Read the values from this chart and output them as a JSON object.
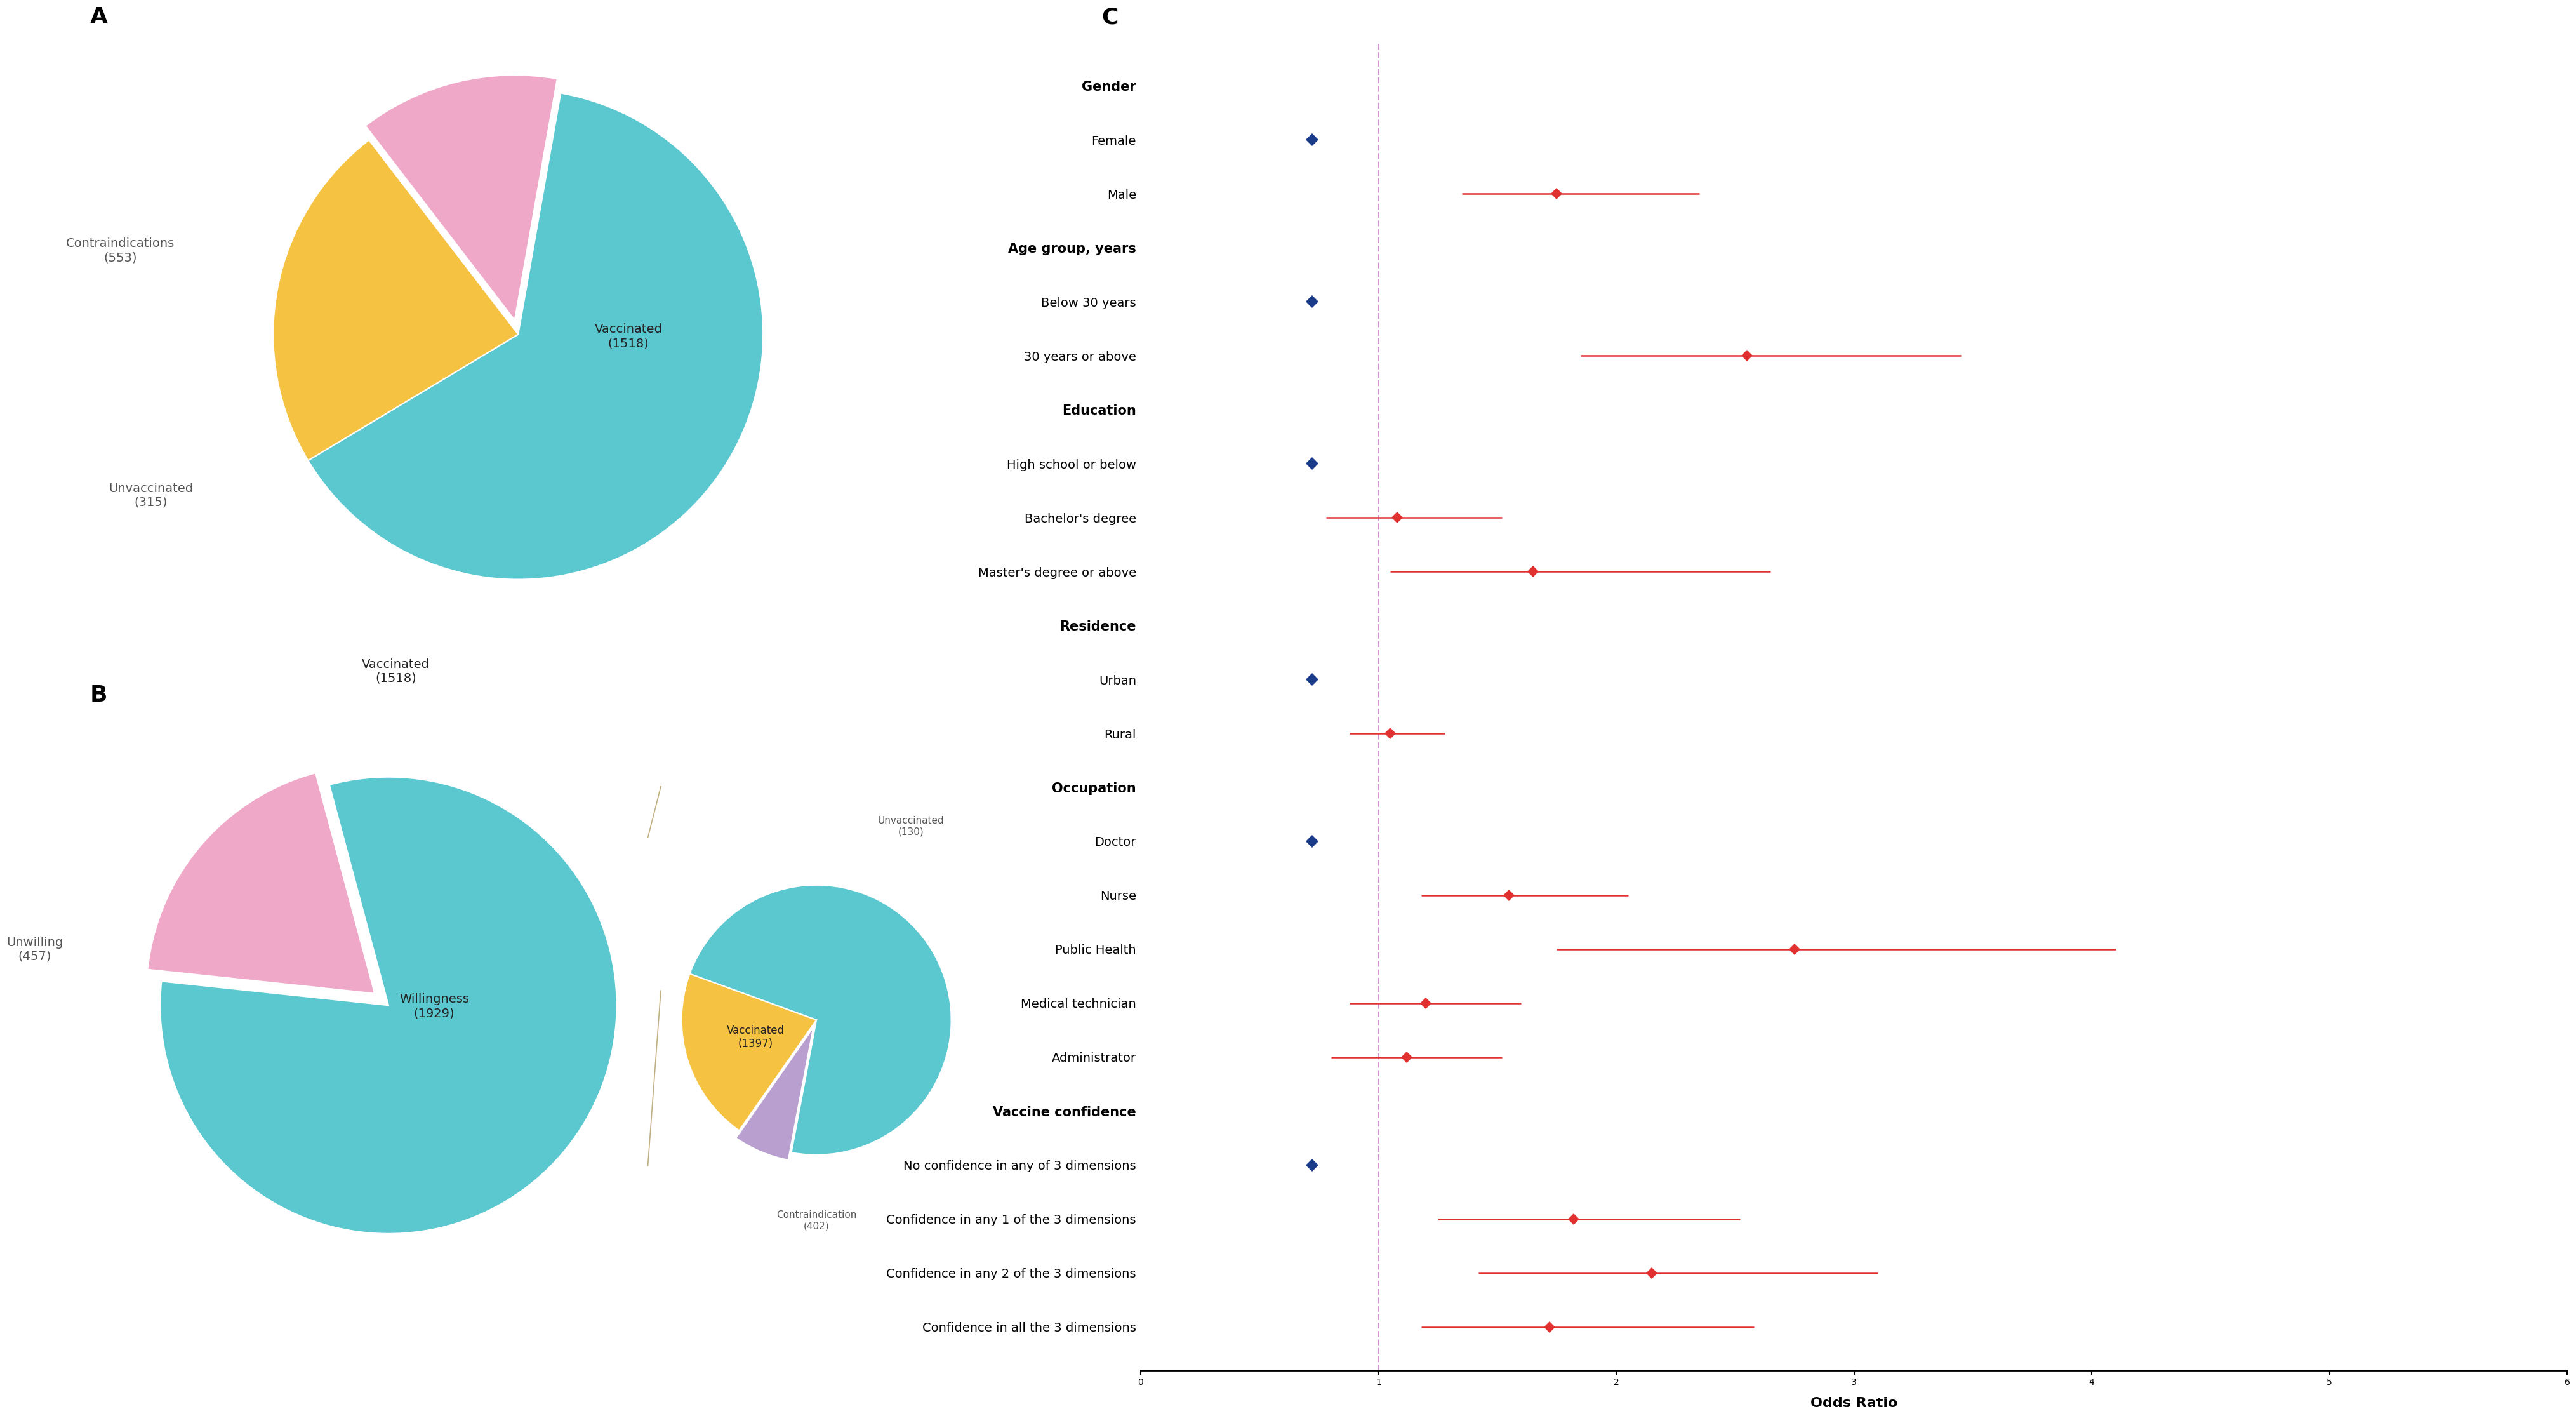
{
  "pie_A": {
    "sizes": [
      1518,
      553,
      315
    ],
    "colors": [
      "#5BC8D0",
      "#F5C242",
      "#F0A8C8"
    ],
    "startangle": 80,
    "explode": [
      0,
      0,
      0.06
    ],
    "labels": [
      "Vaccinated\n(1518)",
      "Contraindications\n(553)",
      "Unvaccinated\n(315)"
    ]
  },
  "pie_B_main": {
    "sizes": [
      1929,
      457
    ],
    "colors": [
      "#5BC8D0",
      "#F0A8C8"
    ],
    "startangle": 105,
    "explode": [
      0,
      0.08
    ],
    "labels": [
      "Willingness\n(1929)",
      "Unwilling\n(457)"
    ]
  },
  "pie_B_sub": {
    "sizes": [
      1397,
      130,
      402
    ],
    "colors": [
      "#5BC8D0",
      "#B89FD0",
      "#F5C242"
    ],
    "startangle": 160,
    "explode": [
      0,
      0.06,
      0
    ],
    "labels": [
      "Vaccinated\n(1397)",
      "Unvaccinated\n(130)",
      "Contraindication\n(402)"
    ]
  },
  "forest": {
    "categories": [
      "Gender",
      "Female",
      "Male",
      "Age group, years",
      "Below 30 years",
      "30 years or above",
      "Education",
      "High school or below",
      "Bachelor's degree",
      "Master's degree or above",
      "Residence",
      "Urban",
      "Rural",
      "Occupation",
      "Doctor",
      "Nurse",
      "Public Health",
      "Medical technician",
      "Administrator",
      "Vaccine confidence",
      "No confidence in any of 3 dimensions",
      "Confidence in any 1 of the 3 dimensions",
      "Confidence in any 2 of the 3 dimensions",
      "Confidence in all the 3 dimensions"
    ],
    "bold": [
      true,
      false,
      false,
      true,
      false,
      false,
      true,
      false,
      false,
      false,
      true,
      false,
      false,
      true,
      false,
      false,
      false,
      false,
      false,
      true,
      false,
      false,
      false,
      false
    ],
    "or": [
      null,
      0.72,
      1.75,
      null,
      0.72,
      2.55,
      null,
      0.72,
      1.08,
      1.65,
      null,
      0.72,
      1.05,
      null,
      0.72,
      1.55,
      2.75,
      1.2,
      1.12,
      null,
      0.72,
      1.82,
      2.15,
      1.72
    ],
    "ci_lo": [
      null,
      null,
      1.35,
      null,
      null,
      1.85,
      null,
      null,
      0.78,
      1.05,
      null,
      null,
      0.88,
      null,
      null,
      1.18,
      1.75,
      0.88,
      0.8,
      null,
      null,
      1.25,
      1.42,
      1.18
    ],
    "ci_hi": [
      null,
      null,
      2.35,
      null,
      null,
      3.45,
      null,
      null,
      1.52,
      2.65,
      null,
      null,
      1.28,
      null,
      null,
      2.05,
      4.1,
      1.6,
      1.52,
      null,
      null,
      2.52,
      3.1,
      2.58
    ],
    "is_ref": [
      false,
      true,
      false,
      false,
      true,
      false,
      false,
      true,
      false,
      false,
      false,
      true,
      false,
      false,
      true,
      false,
      false,
      false,
      false,
      false,
      true,
      false,
      false,
      false
    ],
    "xlim": [
      0,
      6
    ],
    "xticks": [
      0,
      1,
      2,
      3,
      4,
      5,
      6
    ],
    "ref_line": 1.0,
    "xlabel": "Odds Ratio",
    "ref_color": "#1A3A8A",
    "data_color": "#E03030"
  },
  "label_color": "#555555",
  "bg_color": "#FFFFFF",
  "line_color": "#C0B080"
}
